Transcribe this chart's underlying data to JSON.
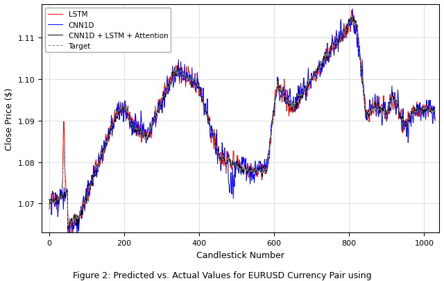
{
  "xlabel": "Candlestick Number",
  "ylabel": "Close Price ($)",
  "caption": "Figure 2: Predicted vs. Actual Values for EURUSD Currency Pair using",
  "xlim": [
    -20,
    1040
  ],
  "ylim": [
    1.063,
    1.118
  ],
  "yticks": [
    1.07,
    1.08,
    1.09,
    1.1,
    1.11
  ],
  "xticks": [
    0,
    200,
    400,
    600,
    800,
    1000
  ],
  "legend_labels": [
    "Target",
    "CNN1D",
    "LSTM",
    "CNN1D + LSTM + Attention"
  ],
  "n_points": 1030,
  "seed": 42,
  "background_color": "#ffffff",
  "grid_color": "#e0e0e0"
}
